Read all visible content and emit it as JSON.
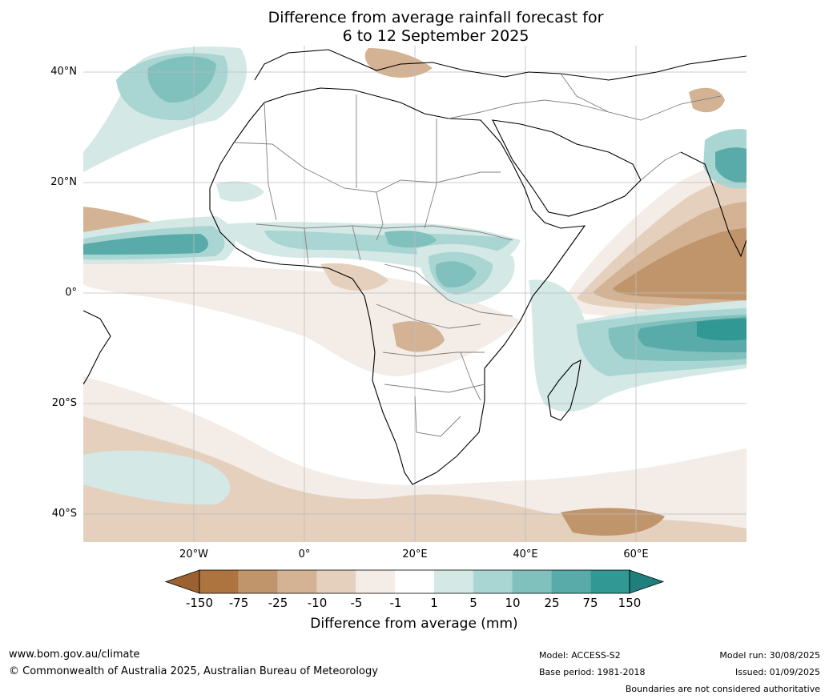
{
  "title_line1": "Difference from average rainfall forecast for",
  "title_line2": "6 to 12 September 2025",
  "map": {
    "region": "Africa",
    "lat_labels": [
      "40°N",
      "20°N",
      "0°",
      "20°S",
      "40°S"
    ],
    "lon_labels": [
      "20°W",
      "0°",
      "20°E",
      "40°E",
      "60°E"
    ],
    "graticule": true
  },
  "colorbar": {
    "title": "Difference from average (mm)",
    "labels": [
      "-150",
      "-75",
      "-25",
      "-10",
      "-5",
      "-1",
      "1",
      "5",
      "10",
      "25",
      "75",
      "150"
    ],
    "colors": [
      "#9c6131",
      "#ad7440",
      "#c0956c",
      "#d3b393",
      "#e4d0bd",
      "#f4ece6",
      "#ffffff",
      "#d4e8e6",
      "#a9d5d2",
      "#80c0bd",
      "#58aba8",
      "#329894",
      "#1f7f7c"
    ]
  },
  "footer": {
    "website": "www.bom.gov.au/climate",
    "copyright": "© Commonwealth of Australia 2025, Australian Bureau of Meteorology",
    "model": "Model: ACCESS-S2",
    "base_period": "Base period: 1981-2018",
    "model_run": "Model run: 30/08/2025",
    "issued": "Issued: 01/09/2025",
    "disclaimer": "Boundaries are not considered authoritative"
  }
}
